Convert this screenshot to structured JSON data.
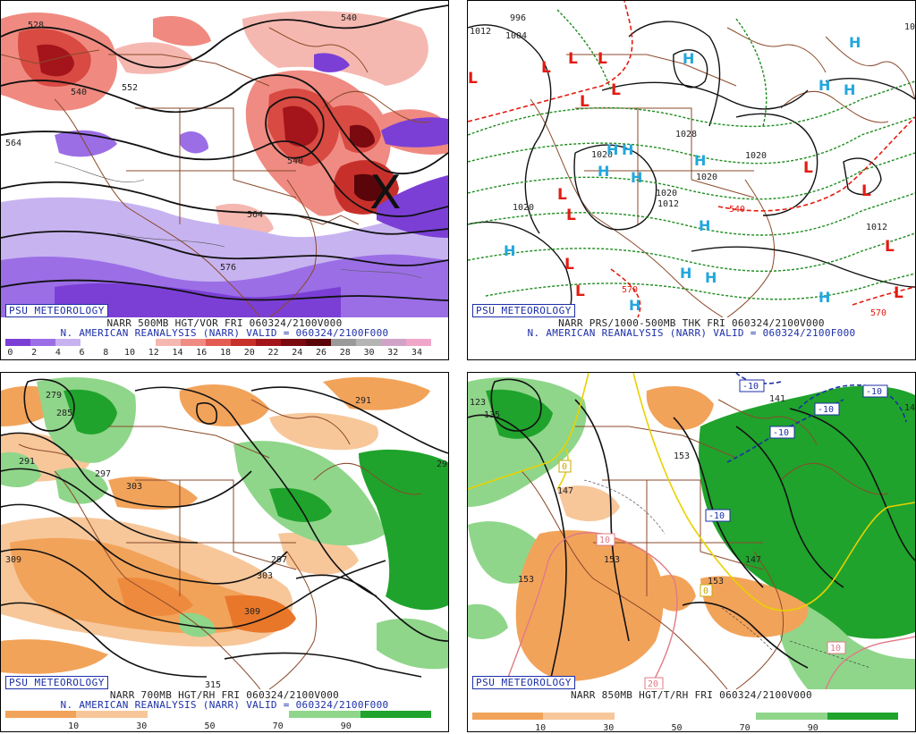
{
  "panels": {
    "tl": {
      "logo": "PSU METEOROLOGY",
      "caption1": "NARR 500MB HGT/VOR FRI 060324/2100V000",
      "caption2": "N. AMERICAN REANALYSIS (NARR) VALID = 060324/2100F000",
      "colorbar": {
        "ticks": [
          "0",
          "2",
          "4",
          "6",
          "8",
          "10",
          "12",
          "14",
          "16",
          "18",
          "20",
          "22",
          "24",
          "26",
          "28",
          "30",
          "32",
          "34"
        ],
        "colors": [
          "#7b3fd6",
          "#9b6ee6",
          "#c7b3f0",
          "#ffffff",
          "#ffffff",
          "#ffffff",
          "#f5b8b0",
          "#ef8b82",
          "#e35b52",
          "#c7302a",
          "#a3151b",
          "#7a0a10",
          "#5a0509",
          "#9a9a9a",
          "#b5b5b5",
          "#d1a3c9",
          "#f0a6c9"
        ]
      },
      "contour_labels": [
        "528",
        "540",
        "552",
        "564",
        "540",
        "576",
        "540",
        "564"
      ],
      "marker": "X"
    },
    "tr": {
      "logo": "PSU METEOROLOGY",
      "caption1": "NARR PRS/1000-500MB THK FRI 060324/2100V000",
      "caption2": "N. AMERICAN REANALYSIS (NARR) VALID = 060324/2100F000",
      "isobar_labels": [
        "1012",
        "1004",
        "996",
        "1020",
        "1020",
        "1028",
        "1020",
        "1020",
        "1012",
        "1020",
        "1012",
        "1012"
      ],
      "thickness_labels": [
        "540",
        "570",
        "570"
      ],
      "high_symbol": "H",
      "low_symbol": "L"
    },
    "bl": {
      "logo": "PSU METEOROLOGY",
      "caption1": "NARR 700MB HGT/RH FRI 060324/2100V000",
      "caption2": "N. AMERICAN REANALYSIS (NARR) VALID = 060324/2100F000",
      "colorbar": {
        "ticks": [
          "10",
          "30",
          "50",
          "70",
          "90"
        ],
        "colors": [
          "#f2a35a",
          "#f7c79a",
          "#ffffff",
          "#ffffff",
          "#8fd68a",
          "#1fa32c"
        ]
      },
      "contour_labels": [
        "279",
        "285",
        "291",
        "297",
        "303",
        "309",
        "297",
        "303",
        "309",
        "315",
        "291",
        "29"
      ]
    },
    "br": {
      "logo": "PSU METEOROLOGY",
      "caption1": "NARR 850MB HGT/T/RH FRI 060324/2100V000",
      "colorbar": {
        "ticks": [
          "10",
          "30",
          "50",
          "70",
          "90"
        ],
        "colors": [
          "#f2a35a",
          "#f7c79a",
          "#ffffff",
          "#ffffff",
          "#8fd68a",
          "#1fa32c"
        ]
      },
      "contour_labels": [
        "123",
        "135",
        "141",
        "141",
        "153",
        "147",
        "153",
        "147",
        "153",
        "153"
      ],
      "temp_labels": [
        "-10",
        "-10",
        "-10",
        "-10",
        "-10",
        "0",
        "0",
        "10",
        "10",
        "20"
      ]
    }
  }
}
